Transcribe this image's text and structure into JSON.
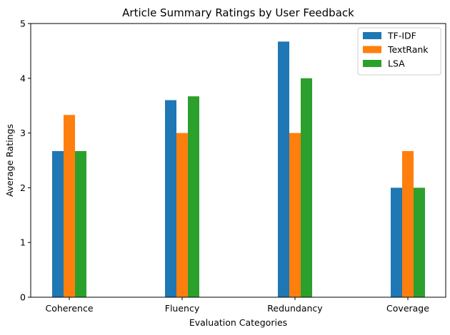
{
  "chart_data": {
    "type": "bar",
    "title": "Article Summary Ratings by User Feedback",
    "xlabel": "Evaluation Categories",
    "ylabel": "Average Ratings",
    "categories": [
      "Coherence",
      "Fluency",
      "Redundancy",
      "Coverage"
    ],
    "series": [
      {
        "name": "TF-IDF",
        "color": "#1f77b4",
        "values": [
          2.67,
          3.6,
          4.67,
          2.0
        ]
      },
      {
        "name": "TextRank",
        "color": "#ff7f0e",
        "values": [
          3.33,
          3.0,
          3.0,
          2.67
        ]
      },
      {
        "name": "LSA",
        "color": "#2ca02c",
        "values": [
          2.67,
          3.67,
          4.0,
          2.0
        ]
      }
    ],
    "ylim": [
      0,
      5
    ],
    "yticks": [
      "0",
      "1",
      "2",
      "3",
      "4",
      "5"
    ],
    "grid": false,
    "legend_position": "top-right"
  }
}
